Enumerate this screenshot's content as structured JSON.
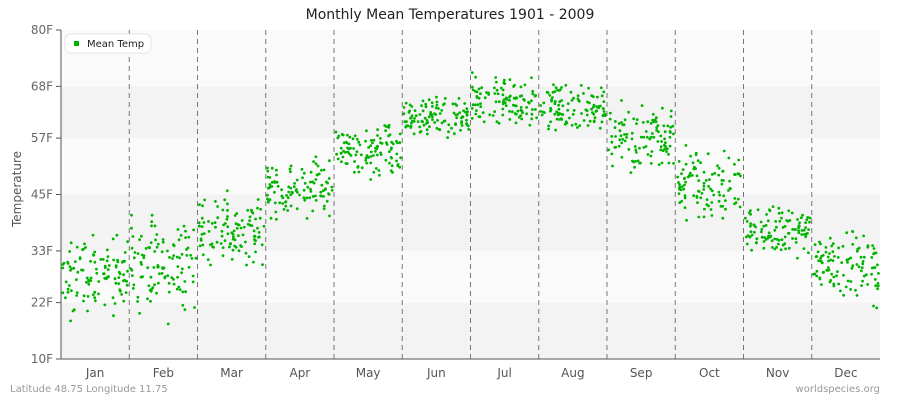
{
  "chart_data": {
    "type": "scatter",
    "title": "Monthly Mean Temperatures 1901 - 2009",
    "xlabel": "",
    "ylabel": "Temperature",
    "ylim": [
      10,
      80
    ],
    "yticks": [
      "80F",
      "68F",
      "57F",
      "45F",
      "33F",
      "22F",
      "10F"
    ],
    "ytick_values": [
      80,
      68,
      57,
      45,
      33,
      22,
      10
    ],
    "categories": [
      "Jan",
      "Feb",
      "Mar",
      "Apr",
      "May",
      "Jun",
      "Jul",
      "Aug",
      "Sep",
      "Oct",
      "Nov",
      "Dec"
    ],
    "legend": {
      "label": "Mean Temp",
      "position": "top-left"
    },
    "grid": "alternating horizontal bands, dashed vertical month dividers",
    "series": [
      {
        "name": "Mean Temp",
        "color": "#00b400",
        "years": [
          1901,
          2009
        ],
        "monthly_summary": [
          {
            "month": "Jan",
            "mean": 27.9,
            "min": 15.1,
            "max": 36.4
          },
          {
            "month": "Feb",
            "mean": 30.0,
            "min": 17.2,
            "max": 40.6
          },
          {
            "month": "Mar",
            "mean": 37.4,
            "min": 30.0,
            "max": 46.0
          },
          {
            "month": "Apr",
            "mean": 46.0,
            "min": 38.5,
            "max": 53.4
          },
          {
            "month": "May",
            "mean": 54.5,
            "min": 48.0,
            "max": 61.0
          },
          {
            "month": "Jun",
            "mean": 60.9,
            "min": 55.5,
            "max": 66.0
          },
          {
            "month": "Jul",
            "mean": 64.5,
            "min": 58.7,
            "max": 71.5
          },
          {
            "month": "Aug",
            "mean": 63.5,
            "min": 58.7,
            "max": 70.4
          },
          {
            "month": "Sep",
            "mean": 57.5,
            "min": 49.0,
            "max": 65.0
          },
          {
            "month": "Oct",
            "mean": 47.0,
            "min": 38.5,
            "max": 55.5
          },
          {
            "month": "Nov",
            "mean": 37.4,
            "min": 31.0,
            "max": 45.0
          },
          {
            "month": "Dec",
            "mean": 30.0,
            "min": 20.4,
            "max": 38.5
          }
        ]
      }
    ]
  },
  "footer": {
    "left": "Latitude 48.75 Longitude 11.75",
    "right": "worldspecies.org"
  }
}
